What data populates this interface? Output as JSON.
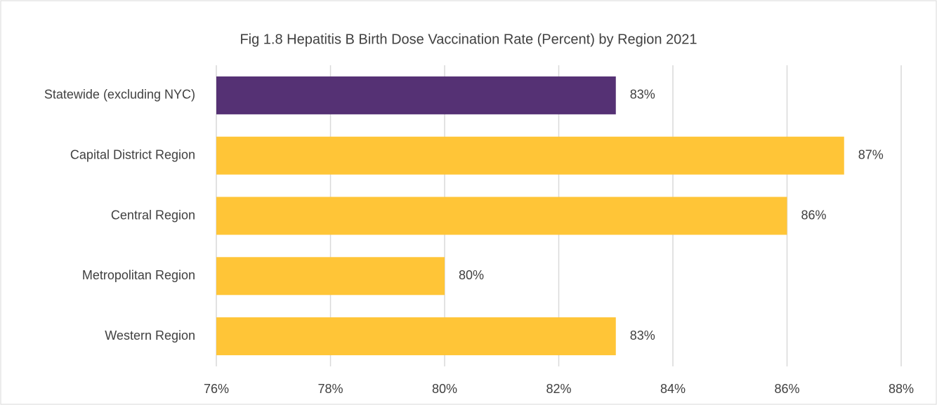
{
  "chart_data": {
    "type": "bar",
    "orientation": "horizontal",
    "title": "Fig 1.8 Hepatitis B Birth Dose Vaccination Rate (Percent) by Region 2021",
    "categories": [
      "Statewide (excluding NYC)",
      "Capital District Region",
      "Central Region",
      "Metropolitan Region",
      "Western Region"
    ],
    "values": [
      83,
      87,
      86,
      80,
      83
    ],
    "value_labels": [
      "83%",
      "87%",
      "86%",
      "80%",
      "83%"
    ],
    "colors": [
      "#553174",
      "#ffc537",
      "#ffc537",
      "#ffc537",
      "#ffc537"
    ],
    "xlim": [
      76,
      88
    ],
    "xticks": [
      {
        "value": 76,
        "label": "76%"
      },
      {
        "value": 78,
        "label": "78%"
      },
      {
        "value": 80,
        "label": "80%"
      },
      {
        "value": 82,
        "label": "82%"
      },
      {
        "value": 84,
        "label": "84%"
      },
      {
        "value": 86,
        "label": "86%"
      },
      {
        "value": 88,
        "label": "88%"
      }
    ],
    "grid": true
  }
}
